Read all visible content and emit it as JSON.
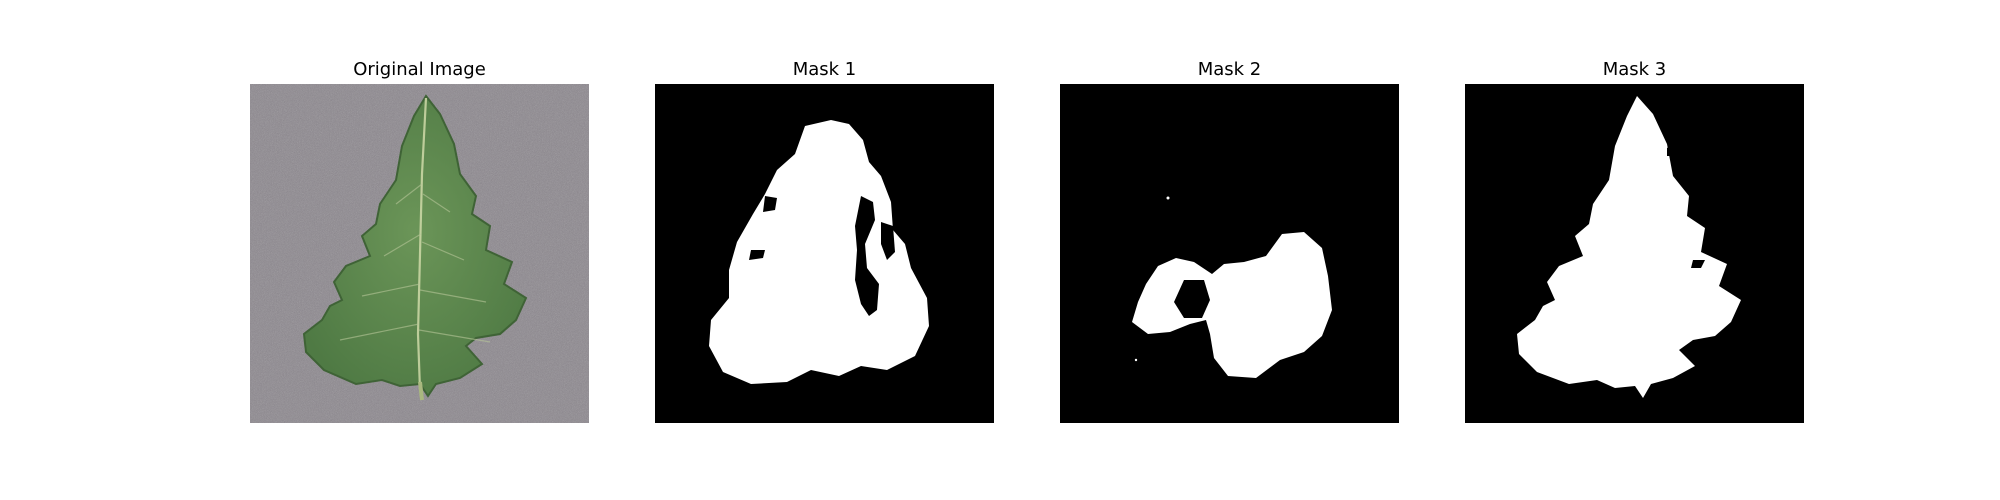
{
  "panels": [
    {
      "title": "Original Image",
      "kind": "photo",
      "subject": "leaf"
    },
    {
      "title": "Mask 1",
      "kind": "mask"
    },
    {
      "title": "Mask 2",
      "kind": "mask"
    },
    {
      "title": "Mask 3",
      "kind": "mask"
    }
  ],
  "colors": {
    "background_gray": "#8a858c",
    "leaf_green": "#5f8a4f",
    "leaf_vein": "#cfd9a8",
    "mask_background": "#000000",
    "mask_foreground": "#ffffff"
  }
}
